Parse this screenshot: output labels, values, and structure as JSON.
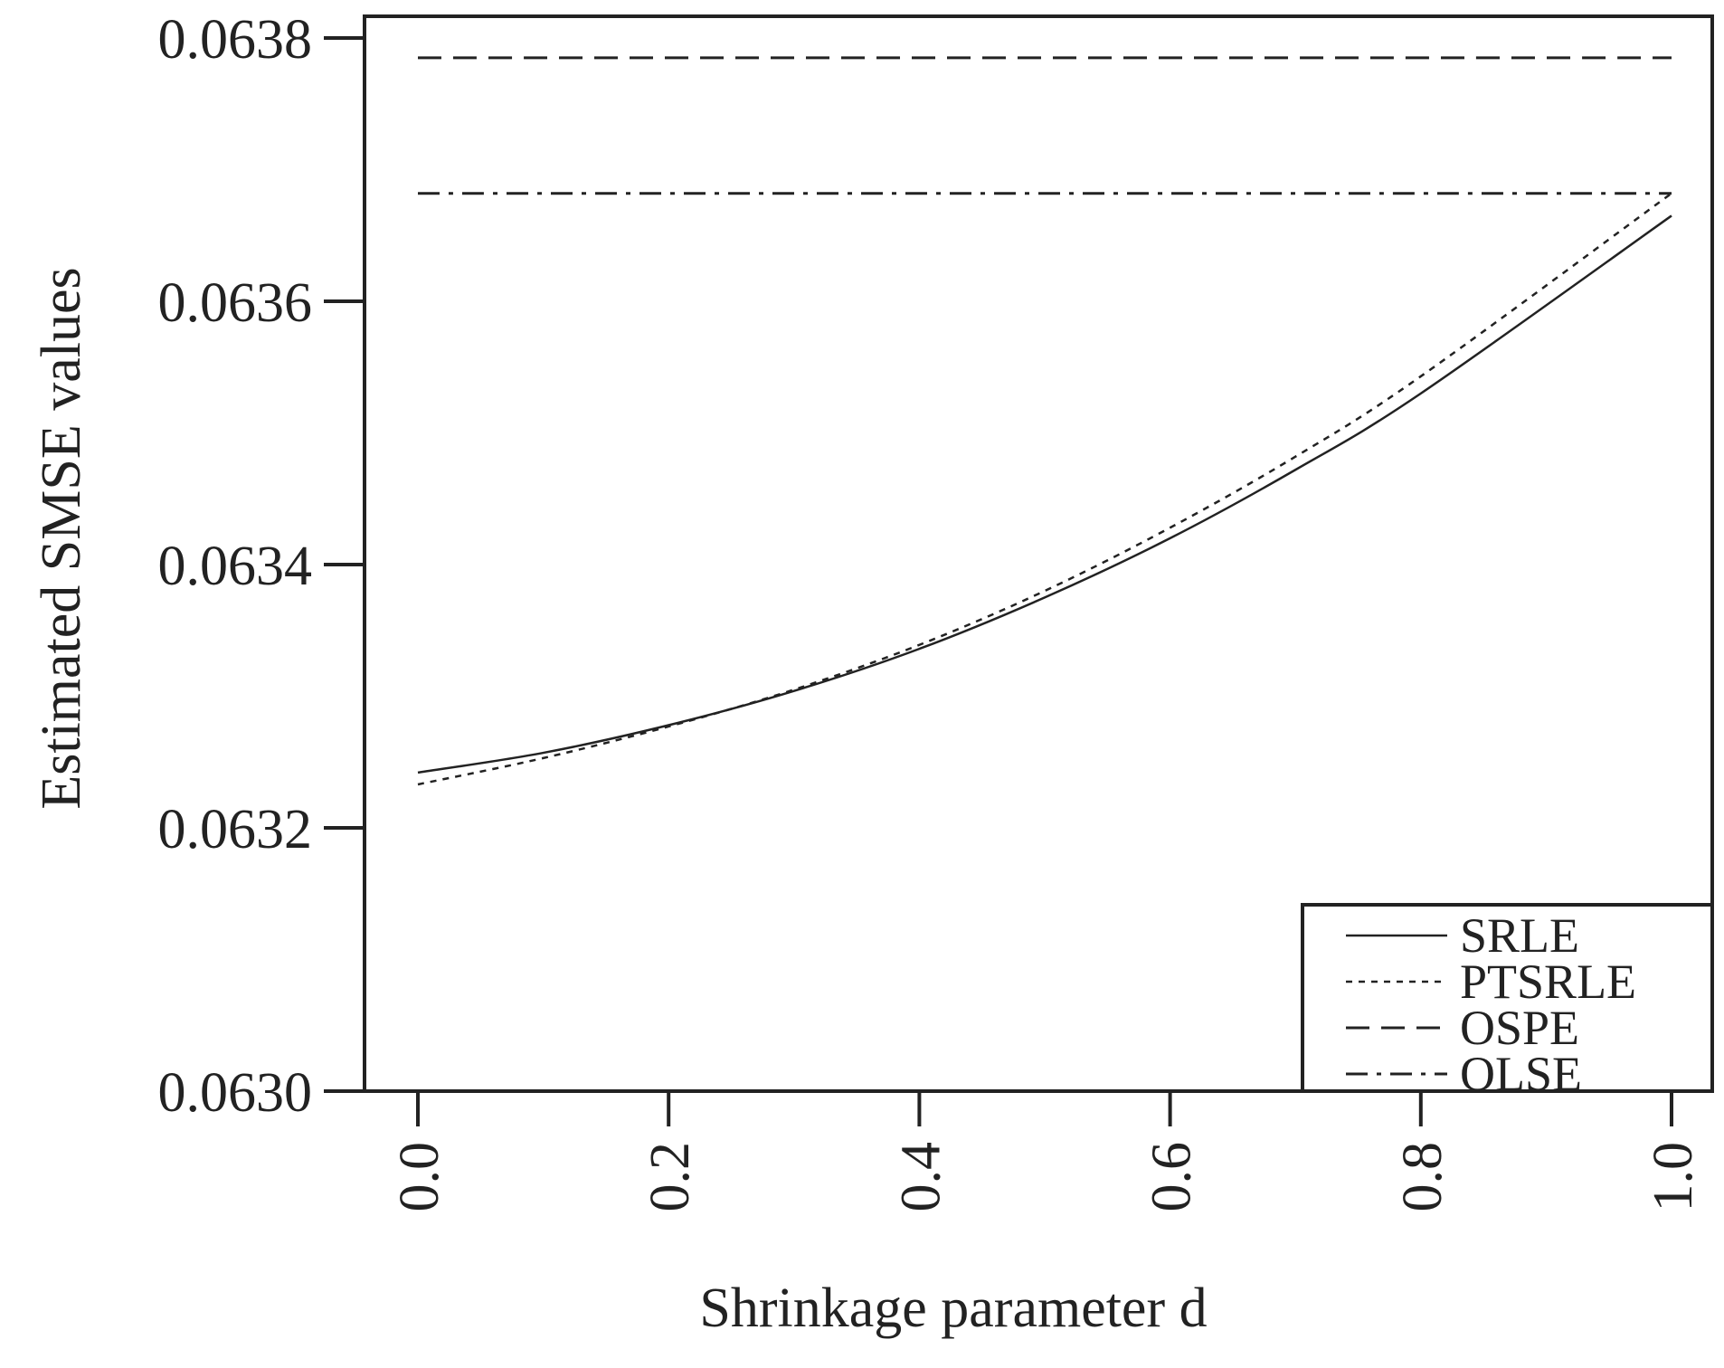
{
  "chart_data": {
    "type": "line",
    "xlabel": "Shrinkage parameter d",
    "ylabel": "Estimated SMSE values",
    "xlim": [
      0.0,
      1.0
    ],
    "ylim": [
      0.063,
      0.0638
    ],
    "x_ticks": [
      "0.0",
      "0.2",
      "0.4",
      "0.6",
      "0.8",
      "1.0"
    ],
    "y_ticks": [
      "0.0630",
      "0.0632",
      "0.0634",
      "0.0636",
      "0.0638"
    ],
    "grid": false,
    "legend_position": "bottom-right",
    "x": [
      0.0,
      0.1,
      0.2,
      0.3,
      0.4,
      0.5,
      0.6,
      0.7,
      0.8,
      1.0
    ],
    "series": [
      {
        "name": "SRLE",
        "style": "solid",
        "values": [
          0.063242,
          0.063257,
          0.063278,
          0.063304,
          0.063336,
          0.063375,
          0.06342,
          0.063472,
          0.06353,
          0.063665
        ]
      },
      {
        "name": "PTSRLE",
        "style": "dotted",
        "values": [
          0.063233,
          0.063253,
          0.063277,
          0.063305,
          0.063339,
          0.06338,
          0.063428,
          0.063482,
          0.063543,
          0.063682
        ]
      },
      {
        "name": "OSPE",
        "style": "dashed",
        "values": [
          0.063785,
          0.063785,
          0.063785,
          0.063785,
          0.063785,
          0.063785,
          0.063785,
          0.063785,
          0.063785,
          0.063785
        ]
      },
      {
        "name": "OLSE",
        "style": "dashdot",
        "values": [
          0.063682,
          0.063682,
          0.063682,
          0.063682,
          0.063682,
          0.063682,
          0.063682,
          0.063682,
          0.063682,
          0.063682
        ]
      }
    ]
  }
}
